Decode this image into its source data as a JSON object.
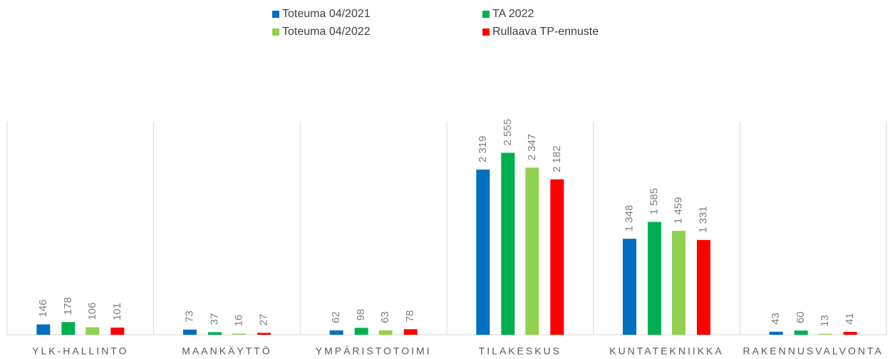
{
  "chart_data": {
    "type": "bar",
    "categories": [
      "YLK-HALLINTO",
      "MAANKÄYTTÖ",
      "YMPÄRISTOTOIMI",
      "TILAKESKUS",
      "KUNTATEKNIIKKA",
      "RAKENNUSVALVONTA"
    ],
    "series": [
      {
        "name": "Toteuma 04/2021",
        "color": "#0070c0",
        "values": [
          146,
          73,
          62,
          2319,
          1348,
          43
        ],
        "value_labels": [
          "146",
          "73",
          "62",
          "2 319",
          "1 348",
          "43"
        ]
      },
      {
        "name": "TA 2022",
        "color": "#00b050",
        "values": [
          178,
          37,
          98,
          2555,
          1585,
          60
        ],
        "value_labels": [
          "178",
          "37",
          "98",
          "2 555",
          "1 585",
          "60"
        ]
      },
      {
        "name": "Toteuma 04/2022",
        "color": "#92d050",
        "values": [
          106,
          16,
          63,
          2347,
          1459,
          13
        ],
        "value_labels": [
          "106",
          "16",
          "63",
          "2 347",
          "1 459",
          "13"
        ]
      },
      {
        "name": "Rullaava TP-ennuste",
        "color": "#ff0000",
        "values": [
          101,
          27,
          78,
          2182,
          1331,
          41
        ],
        "value_labels": [
          "101",
          "27",
          "78",
          "2 182",
          "1 331",
          "41"
        ]
      }
    ],
    "ylim": [
      0,
      3000
    ]
  }
}
